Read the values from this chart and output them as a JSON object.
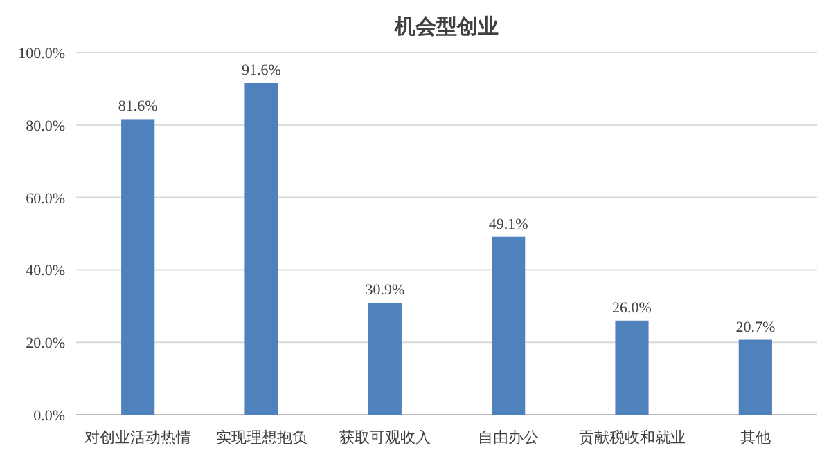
{
  "chart_data": {
    "type": "bar",
    "title": "机会型创业",
    "categories": [
      "对创业活动热情",
      "实现理想抱负",
      "获取可观收入",
      "自由办公",
      "贡献税收和就业",
      "其他"
    ],
    "values": [
      81.6,
      91.6,
      30.9,
      49.1,
      26.0,
      20.7
    ],
    "value_labels": [
      "81.6%",
      "91.6%",
      "30.9%",
      "49.1%",
      "26.0%",
      "20.7%"
    ],
    "color": "#4f81bd",
    "ylim": [
      0,
      100
    ],
    "yticks": [
      {
        "value": 0,
        "label": "0.0%"
      },
      {
        "value": 20,
        "label": "20.0%"
      },
      {
        "value": 40,
        "label": "40.0%"
      },
      {
        "value": 60,
        "label": "60.0%"
      },
      {
        "value": 80,
        "label": "80.0%"
      },
      {
        "value": 100,
        "label": "100.0%"
      }
    ],
    "grid": "y"
  }
}
